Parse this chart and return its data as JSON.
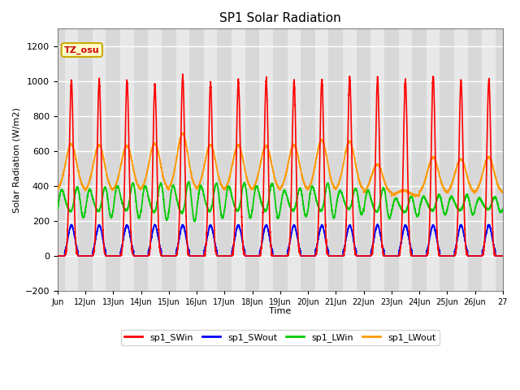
{
  "title": "SP1 Solar Radiation",
  "ylabel": "Solar Radiation (W/m2)",
  "xlabel": "Time",
  "ylim": [
    -200,
    1300
  ],
  "yticks": [
    -200,
    0,
    200,
    400,
    600,
    800,
    1000,
    1200
  ],
  "plot_bg_color": "#e8e8e8",
  "grid_color": "white",
  "band_colors": [
    "#d8d8d8",
    "#e8e8e8"
  ],
  "annotation_text": "TZ_osu",
  "series": {
    "sp1_SWin": {
      "color": "#ff0000",
      "lw": 1.2
    },
    "sp1_SWout": {
      "color": "#0000ff",
      "lw": 1.2
    },
    "sp1_LWin": {
      "color": "#00cc00",
      "lw": 1.2
    },
    "sp1_LWout": {
      "color": "#ff9900",
      "lw": 1.2
    }
  },
  "xtick_labels": [
    "Jun",
    "12Jun",
    "13Jun",
    "14Jun",
    "15Jun",
    "16Jun",
    "17Jun",
    "18Jun",
    "19Jun",
    "20Jun",
    "21Jun",
    "22Jun",
    "23Jun",
    "24Jun",
    "25Jun",
    "26Jun",
    "27"
  ],
  "n_days": 16,
  "points_per_day": 288,
  "sw_peaks": [
    1000,
    1005,
    1000,
    980,
    1025,
    985,
    1000,
    1005,
    1000,
    1010,
    1020,
    1005,
    1000,
    1030,
    1005,
    1010
  ],
  "lw_out_peaks": [
    635,
    630,
    625,
    640,
    695,
    630,
    630,
    625,
    630,
    660,
    650,
    520,
    370,
    560,
    550,
    560
  ],
  "lw_out_night": [
    375,
    370,
    375,
    375,
    380,
    375,
    375,
    375,
    375,
    375,
    375,
    360,
    350,
    360,
    360,
    360
  ],
  "lw_in_base": [
    310,
    310,
    320,
    315,
    315,
    320,
    320,
    320,
    310,
    320,
    315,
    305,
    285,
    295,
    295,
    295
  ],
  "lw_in_amp": [
    70,
    70,
    80,
    85,
    90,
    80,
    80,
    80,
    65,
    80,
    60,
    70,
    45,
    45,
    45,
    35
  ]
}
